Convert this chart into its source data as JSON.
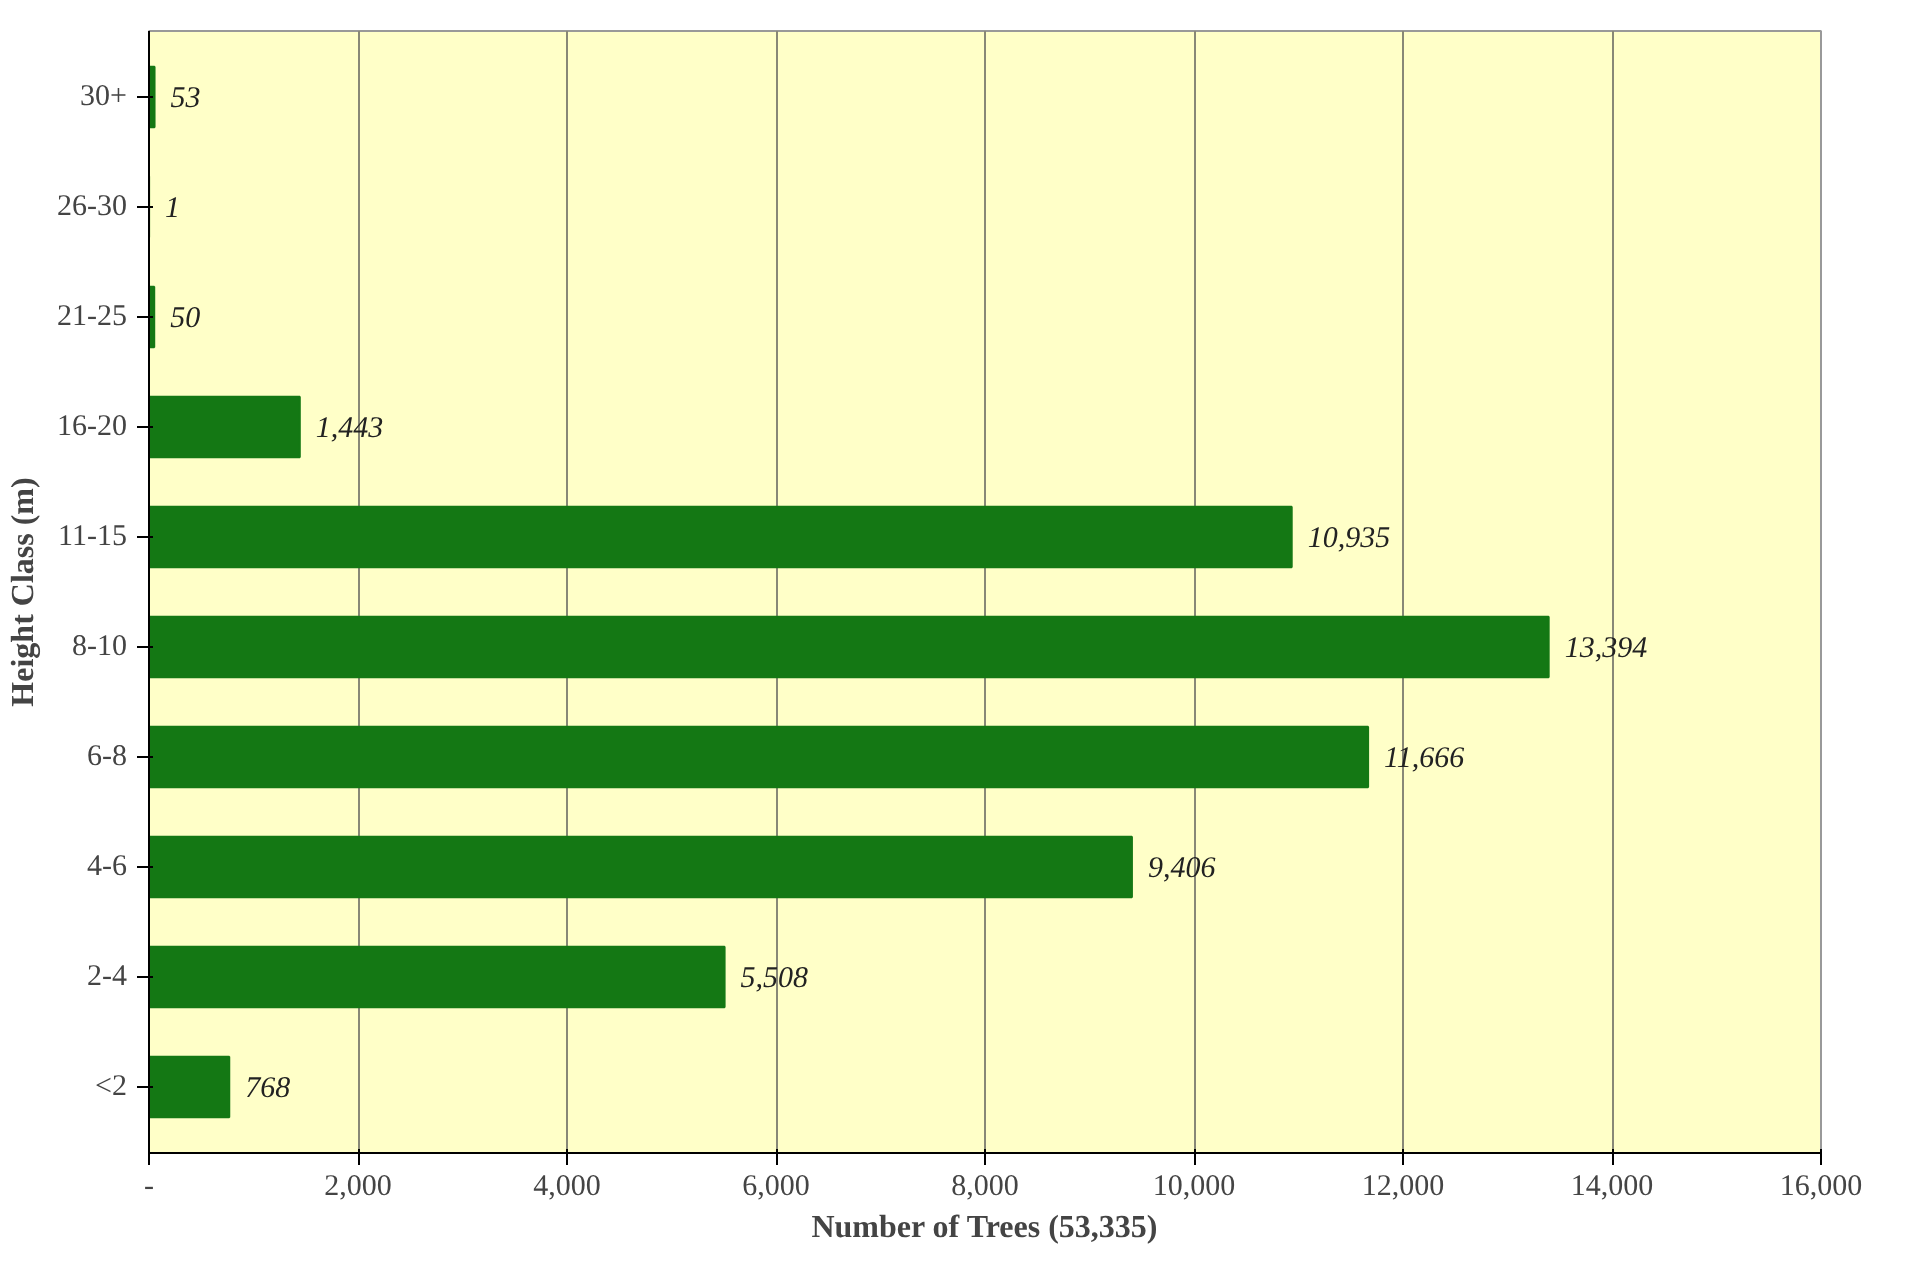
{
  "chart_data": {
    "type": "bar",
    "orientation": "horizontal",
    "xlabel": "Number of Trees (53,335)",
    "ylabel": "Height Class (m)",
    "categories": [
      "30+",
      "26-30",
      "21-25",
      "16-20",
      "11-15",
      "8-10",
      "6-8",
      "4-6",
      "2-4",
      "<2"
    ],
    "values": [
      53,
      1,
      50,
      1443,
      10935,
      13394,
      11666,
      9406,
      5508,
      768
    ],
    "value_labels": [
      "53",
      "1",
      "50",
      "1,443",
      "10,935",
      "13,394",
      "11,666",
      "9,406",
      "5,508",
      "768"
    ],
    "color": "#147814",
    "xlim": [
      0,
      16000
    ],
    "xticks": [
      {
        "value": 0,
        "label": "-"
      },
      {
        "value": 2000,
        "label": "2,000"
      },
      {
        "value": 4000,
        "label": "4,000"
      },
      {
        "value": 6000,
        "label": "6,000"
      },
      {
        "value": 8000,
        "label": "8,000"
      },
      {
        "value": 10000,
        "label": "10,000"
      },
      {
        "value": 12000,
        "label": "12,000"
      },
      {
        "value": 14000,
        "label": "14,000"
      },
      {
        "value": 16000,
        "label": "16,000"
      }
    ],
    "grid": "x"
  }
}
